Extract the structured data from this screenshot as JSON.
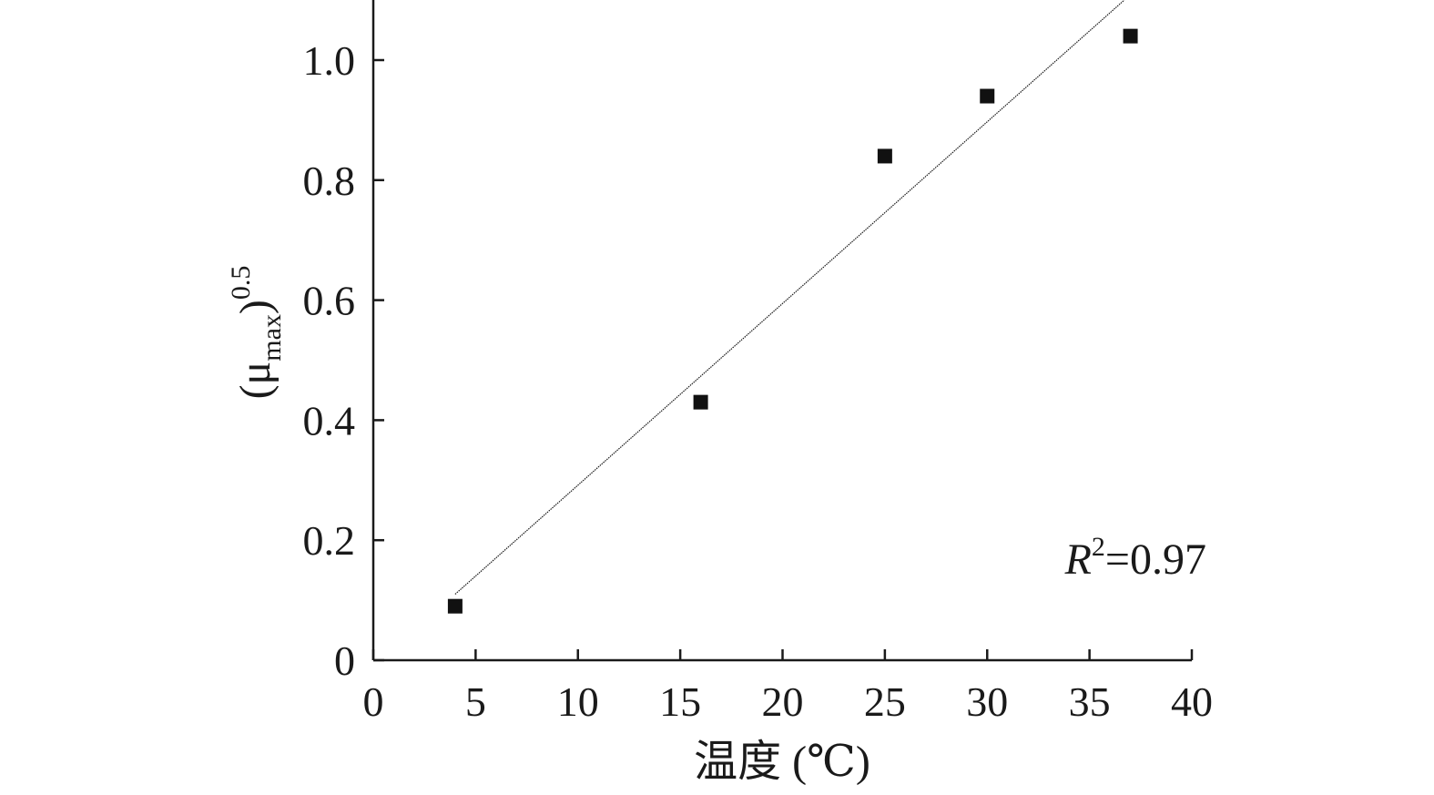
{
  "chart_data": {
    "type": "scatter",
    "xlabel": "温度 (℃)",
    "ylabel": {
      "prefix": "(μ",
      "subscript": "max",
      "suffix": ")",
      "superscript": "0.5"
    },
    "xlim": [
      0,
      40
    ],
    "ylim": [
      0,
      1.1
    ],
    "xticks": [
      0,
      5,
      10,
      15,
      20,
      25,
      30,
      35,
      40
    ],
    "xtick_labels": [
      "0",
      "5",
      "10",
      "15",
      "20",
      "25",
      "30",
      "35",
      "40"
    ],
    "yticks": [
      0,
      0.2,
      0.4,
      0.6,
      0.8,
      1.0
    ],
    "ytick_labels": [
      "0",
      "0.2",
      "0.4",
      "0.6",
      "0.8",
      "1.0"
    ],
    "series": [
      {
        "x": [
          4,
          16,
          25,
          30,
          37
        ],
        "y": [
          0.09,
          0.43,
          0.84,
          0.94,
          1.04
        ],
        "marker": "square",
        "color": "#111111"
      }
    ],
    "fit_line": {
      "x": [
        4,
        36.7
      ],
      "y": [
        0.11,
        1.1
      ],
      "style": "dotted-thin",
      "color": "#1a1a1a"
    },
    "annotation": {
      "symbol": "R",
      "exponent": "2",
      "text": "=0.97"
    },
    "grid": false
  }
}
